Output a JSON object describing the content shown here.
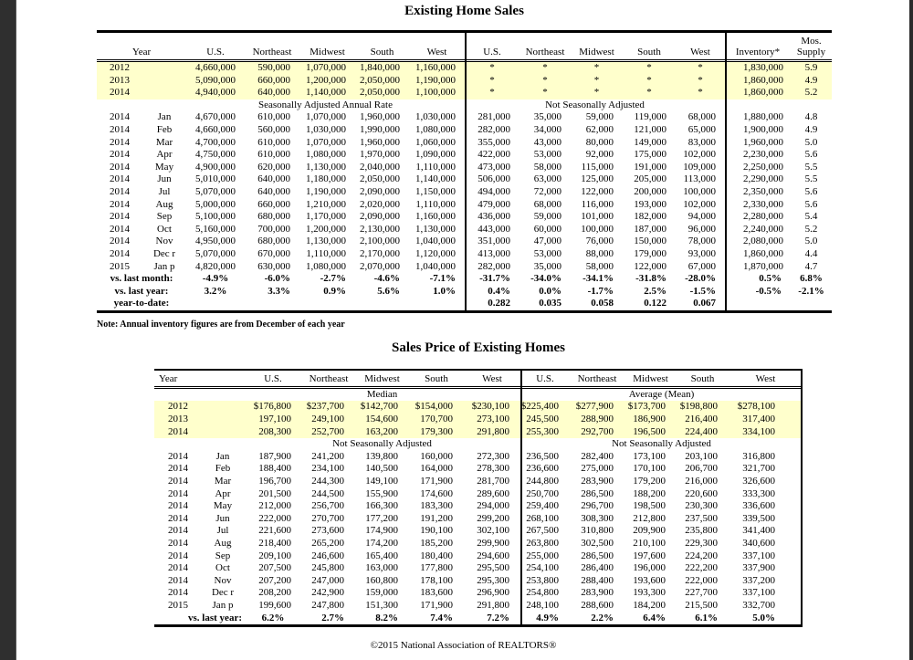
{
  "doc": {
    "title_sales": "Existing Home Sales",
    "title_price": "Sales Price of Existing Homes",
    "note": "Note: Annual inventory figures are from December of each year",
    "footer": "©2015 National Association of REALTORS®"
  },
  "sales_table": {
    "header_rows": [
      [
        "Year",
        "U.S.",
        "Northeast",
        "Midwest",
        "South",
        "West",
        "U.S.",
        "Northeast",
        "Midwest",
        "South",
        "West",
        "Inventory*",
        "Mos.\nSupply"
      ]
    ],
    "group_labels": {
      "left": "Seasonally Adjusted Annual Rate",
      "right": "Not Seasonally Adjusted"
    },
    "annual_rows": [
      [
        "2012",
        "",
        "4,660,000",
        "590,000",
        "1,070,000",
        "1,840,000",
        "1,160,000",
        "*",
        "*",
        "*",
        "*",
        "*",
        "1,830,000",
        "5.9"
      ],
      [
        "2013",
        "",
        "5,090,000",
        "660,000",
        "1,200,000",
        "2,050,000",
        "1,190,000",
        "*",
        "*",
        "*",
        "*",
        "*",
        "1,860,000",
        "4.9"
      ],
      [
        "2014",
        "",
        "4,940,000",
        "640,000",
        "1,140,000",
        "2,050,000",
        "1,100,000",
        "*",
        "*",
        "*",
        "*",
        "*",
        "1,860,000",
        "5.2"
      ]
    ],
    "monthly_rows": [
      [
        "2014",
        "Jan",
        "4,670,000",
        "610,000",
        "1,070,000",
        "1,960,000",
        "1,030,000",
        "281,000",
        "35,000",
        "59,000",
        "119,000",
        "68,000",
        "1,880,000",
        "4.8"
      ],
      [
        "2014",
        "Feb",
        "4,660,000",
        "560,000",
        "1,030,000",
        "1,990,000",
        "1,080,000",
        "282,000",
        "34,000",
        "62,000",
        "121,000",
        "65,000",
        "1,900,000",
        "4.9"
      ],
      [
        "2014",
        "Mar",
        "4,700,000",
        "610,000",
        "1,070,000",
        "1,960,000",
        "1,060,000",
        "355,000",
        "43,000",
        "80,000",
        "149,000",
        "83,000",
        "1,960,000",
        "5.0"
      ],
      [
        "2014",
        "Apr",
        "4,750,000",
        "610,000",
        "1,080,000",
        "1,970,000",
        "1,090,000",
        "422,000",
        "53,000",
        "92,000",
        "175,000",
        "102,000",
        "2,230,000",
        "5.6"
      ],
      [
        "2014",
        "May",
        "4,900,000",
        "620,000",
        "1,130,000",
        "2,040,000",
        "1,110,000",
        "473,000",
        "58,000",
        "115,000",
        "191,000",
        "109,000",
        "2,250,000",
        "5.5"
      ],
      [
        "2014",
        "Jun",
        "5,010,000",
        "640,000",
        "1,180,000",
        "2,050,000",
        "1,140,000",
        "506,000",
        "63,000",
        "125,000",
        "205,000",
        "113,000",
        "2,290,000",
        "5.5"
      ],
      [
        "2014",
        "Jul",
        "5,070,000",
        "640,000",
        "1,190,000",
        "2,090,000",
        "1,150,000",
        "494,000",
        "72,000",
        "122,000",
        "200,000",
        "100,000",
        "2,350,000",
        "5.6"
      ],
      [
        "2014",
        "Aug",
        "5,000,000",
        "660,000",
        "1,210,000",
        "2,020,000",
        "1,110,000",
        "479,000",
        "68,000",
        "116,000",
        "193,000",
        "102,000",
        "2,330,000",
        "5.6"
      ],
      [
        "2014",
        "Sep",
        "5,100,000",
        "680,000",
        "1,170,000",
        "2,090,000",
        "1,160,000",
        "436,000",
        "59,000",
        "101,000",
        "182,000",
        "94,000",
        "2,280,000",
        "5.4"
      ],
      [
        "2014",
        "Oct",
        "5,160,000",
        "700,000",
        "1,200,000",
        "2,130,000",
        "1,130,000",
        "443,000",
        "60,000",
        "100,000",
        "187,000",
        "96,000",
        "2,240,000",
        "5.2"
      ],
      [
        "2014",
        "Nov",
        "4,950,000",
        "680,000",
        "1,130,000",
        "2,100,000",
        "1,040,000",
        "351,000",
        "47,000",
        "76,000",
        "150,000",
        "78,000",
        "2,080,000",
        "5.0"
      ],
      [
        "2014",
        "Dec r",
        "5,070,000",
        "670,000",
        "1,110,000",
        "2,170,000",
        "1,120,000",
        "413,000",
        "53,000",
        "88,000",
        "179,000",
        "93,000",
        "1,860,000",
        "4.4"
      ],
      [
        "2015",
        "Jan p",
        "4,820,000",
        "630,000",
        "1,080,000",
        "2,070,000",
        "1,040,000",
        "282,000",
        "35,000",
        "58,000",
        "122,000",
        "67,000",
        "1,870,000",
        "4.7"
      ]
    ],
    "summary_rows": [
      [
        "vs. last month:",
        "-4.9%",
        "-6.0%",
        "-2.7%",
        "-4.6%",
        "-7.1%",
        "-31.7%",
        "-34.0%",
        "-34.1%",
        "-31.8%",
        "-28.0%",
        "0.5%",
        "6.8%"
      ],
      [
        "vs. last year:",
        "3.2%",
        "3.3%",
        "0.9%",
        "5.6%",
        "1.0%",
        "0.4%",
        "0.0%",
        "-1.7%",
        "2.5%",
        "-1.5%",
        "-0.5%",
        "-2.1%"
      ],
      [
        "year-to-date:",
        "",
        "",
        "",
        "",
        "",
        "0.282",
        "0.035",
        "0.058",
        "0.122",
        "0.067",
        "",
        ""
      ]
    ]
  },
  "price_table": {
    "header_rows": [
      [
        "Year",
        "U.S.",
        "Northeast",
        "Midwest",
        "South",
        "West",
        "U.S.",
        "Northeast",
        "Midwest",
        "South",
        "West"
      ]
    ],
    "group_labels": {
      "left": "Median",
      "right": "Average (Mean)",
      "nsa": "Not Seasonally Adjusted"
    },
    "annual_rows": [
      [
        "2012",
        "",
        "$176,800",
        "$237,700",
        "$142,700",
        "$154,000",
        "$230,100",
        "$225,400",
        "$277,900",
        "$173,700",
        "$198,800",
        "$278,100"
      ],
      [
        "2013",
        "",
        "197,100",
        "249,100",
        "154,600",
        "170,700",
        "273,100",
        "245,500",
        "288,900",
        "186,900",
        "216,400",
        "317,400"
      ],
      [
        "2014",
        "",
        "208,300",
        "252,700",
        "163,200",
        "179,300",
        "291,800",
        "255,300",
        "292,700",
        "196,500",
        "224,400",
        "334,100"
      ]
    ],
    "monthly_rows": [
      [
        "2014",
        "Jan",
        "187,900",
        "241,200",
        "139,800",
        "160,000",
        "272,300",
        "236,500",
        "282,400",
        "173,100",
        "203,100",
        "316,800"
      ],
      [
        "2014",
        "Feb",
        "188,400",
        "234,100",
        "140,500",
        "164,000",
        "278,300",
        "236,600",
        "275,000",
        "170,100",
        "206,700",
        "321,700"
      ],
      [
        "2014",
        "Mar",
        "196,700",
        "244,300",
        "149,100",
        "171,900",
        "281,700",
        "244,800",
        "283,900",
        "179,200",
        "216,000",
        "326,600"
      ],
      [
        "2014",
        "Apr",
        "201,500",
        "244,500",
        "155,900",
        "174,600",
        "289,600",
        "250,700",
        "286,500",
        "188,200",
        "220,600",
        "333,300"
      ],
      [
        "2014",
        "May",
        "212,000",
        "256,700",
        "166,300",
        "183,300",
        "294,000",
        "259,400",
        "296,700",
        "198,500",
        "230,300",
        "336,600"
      ],
      [
        "2014",
        "Jun",
        "222,000",
        "270,700",
        "177,200",
        "191,200",
        "299,200",
        "268,100",
        "308,300",
        "212,800",
        "237,500",
        "339,500"
      ],
      [
        "2014",
        "Jul",
        "221,600",
        "273,600",
        "174,900",
        "190,100",
        "302,100",
        "267,500",
        "310,800",
        "209,900",
        "235,800",
        "341,400"
      ],
      [
        "2014",
        "Aug",
        "218,400",
        "265,200",
        "174,200",
        "185,200",
        "299,900",
        "263,800",
        "302,500",
        "210,100",
        "229,300",
        "340,600"
      ],
      [
        "2014",
        "Sep",
        "209,100",
        "246,600",
        "165,400",
        "180,400",
        "294,600",
        "255,000",
        "286,500",
        "197,600",
        "224,200",
        "337,100"
      ],
      [
        "2014",
        "Oct",
        "207,500",
        "245,800",
        "163,000",
        "177,800",
        "295,500",
        "254,100",
        "286,400",
        "196,000",
        "222,200",
        "337,900"
      ],
      [
        "2014",
        "Nov",
        "207,200",
        "247,000",
        "160,800",
        "178,100",
        "295,300",
        "253,800",
        "288,400",
        "193,600",
        "222,000",
        "337,200"
      ],
      [
        "2014",
        "Dec r",
        "208,200",
        "242,900",
        "159,000",
        "183,600",
        "296,900",
        "254,800",
        "283,900",
        "193,300",
        "227,700",
        "337,100"
      ],
      [
        "2015",
        "Jan p",
        "199,600",
        "247,800",
        "151,300",
        "171,900",
        "291,800",
        "248,100",
        "288,600",
        "184,200",
        "215,500",
        "332,700"
      ]
    ],
    "summary_rows": [
      [
        "vs. last year:",
        "6.2%",
        "2.7%",
        "8.2%",
        "7.4%",
        "7.2%",
        "4.9%",
        "2.2%",
        "6.4%",
        "6.1%",
        "5.0%"
      ]
    ]
  }
}
